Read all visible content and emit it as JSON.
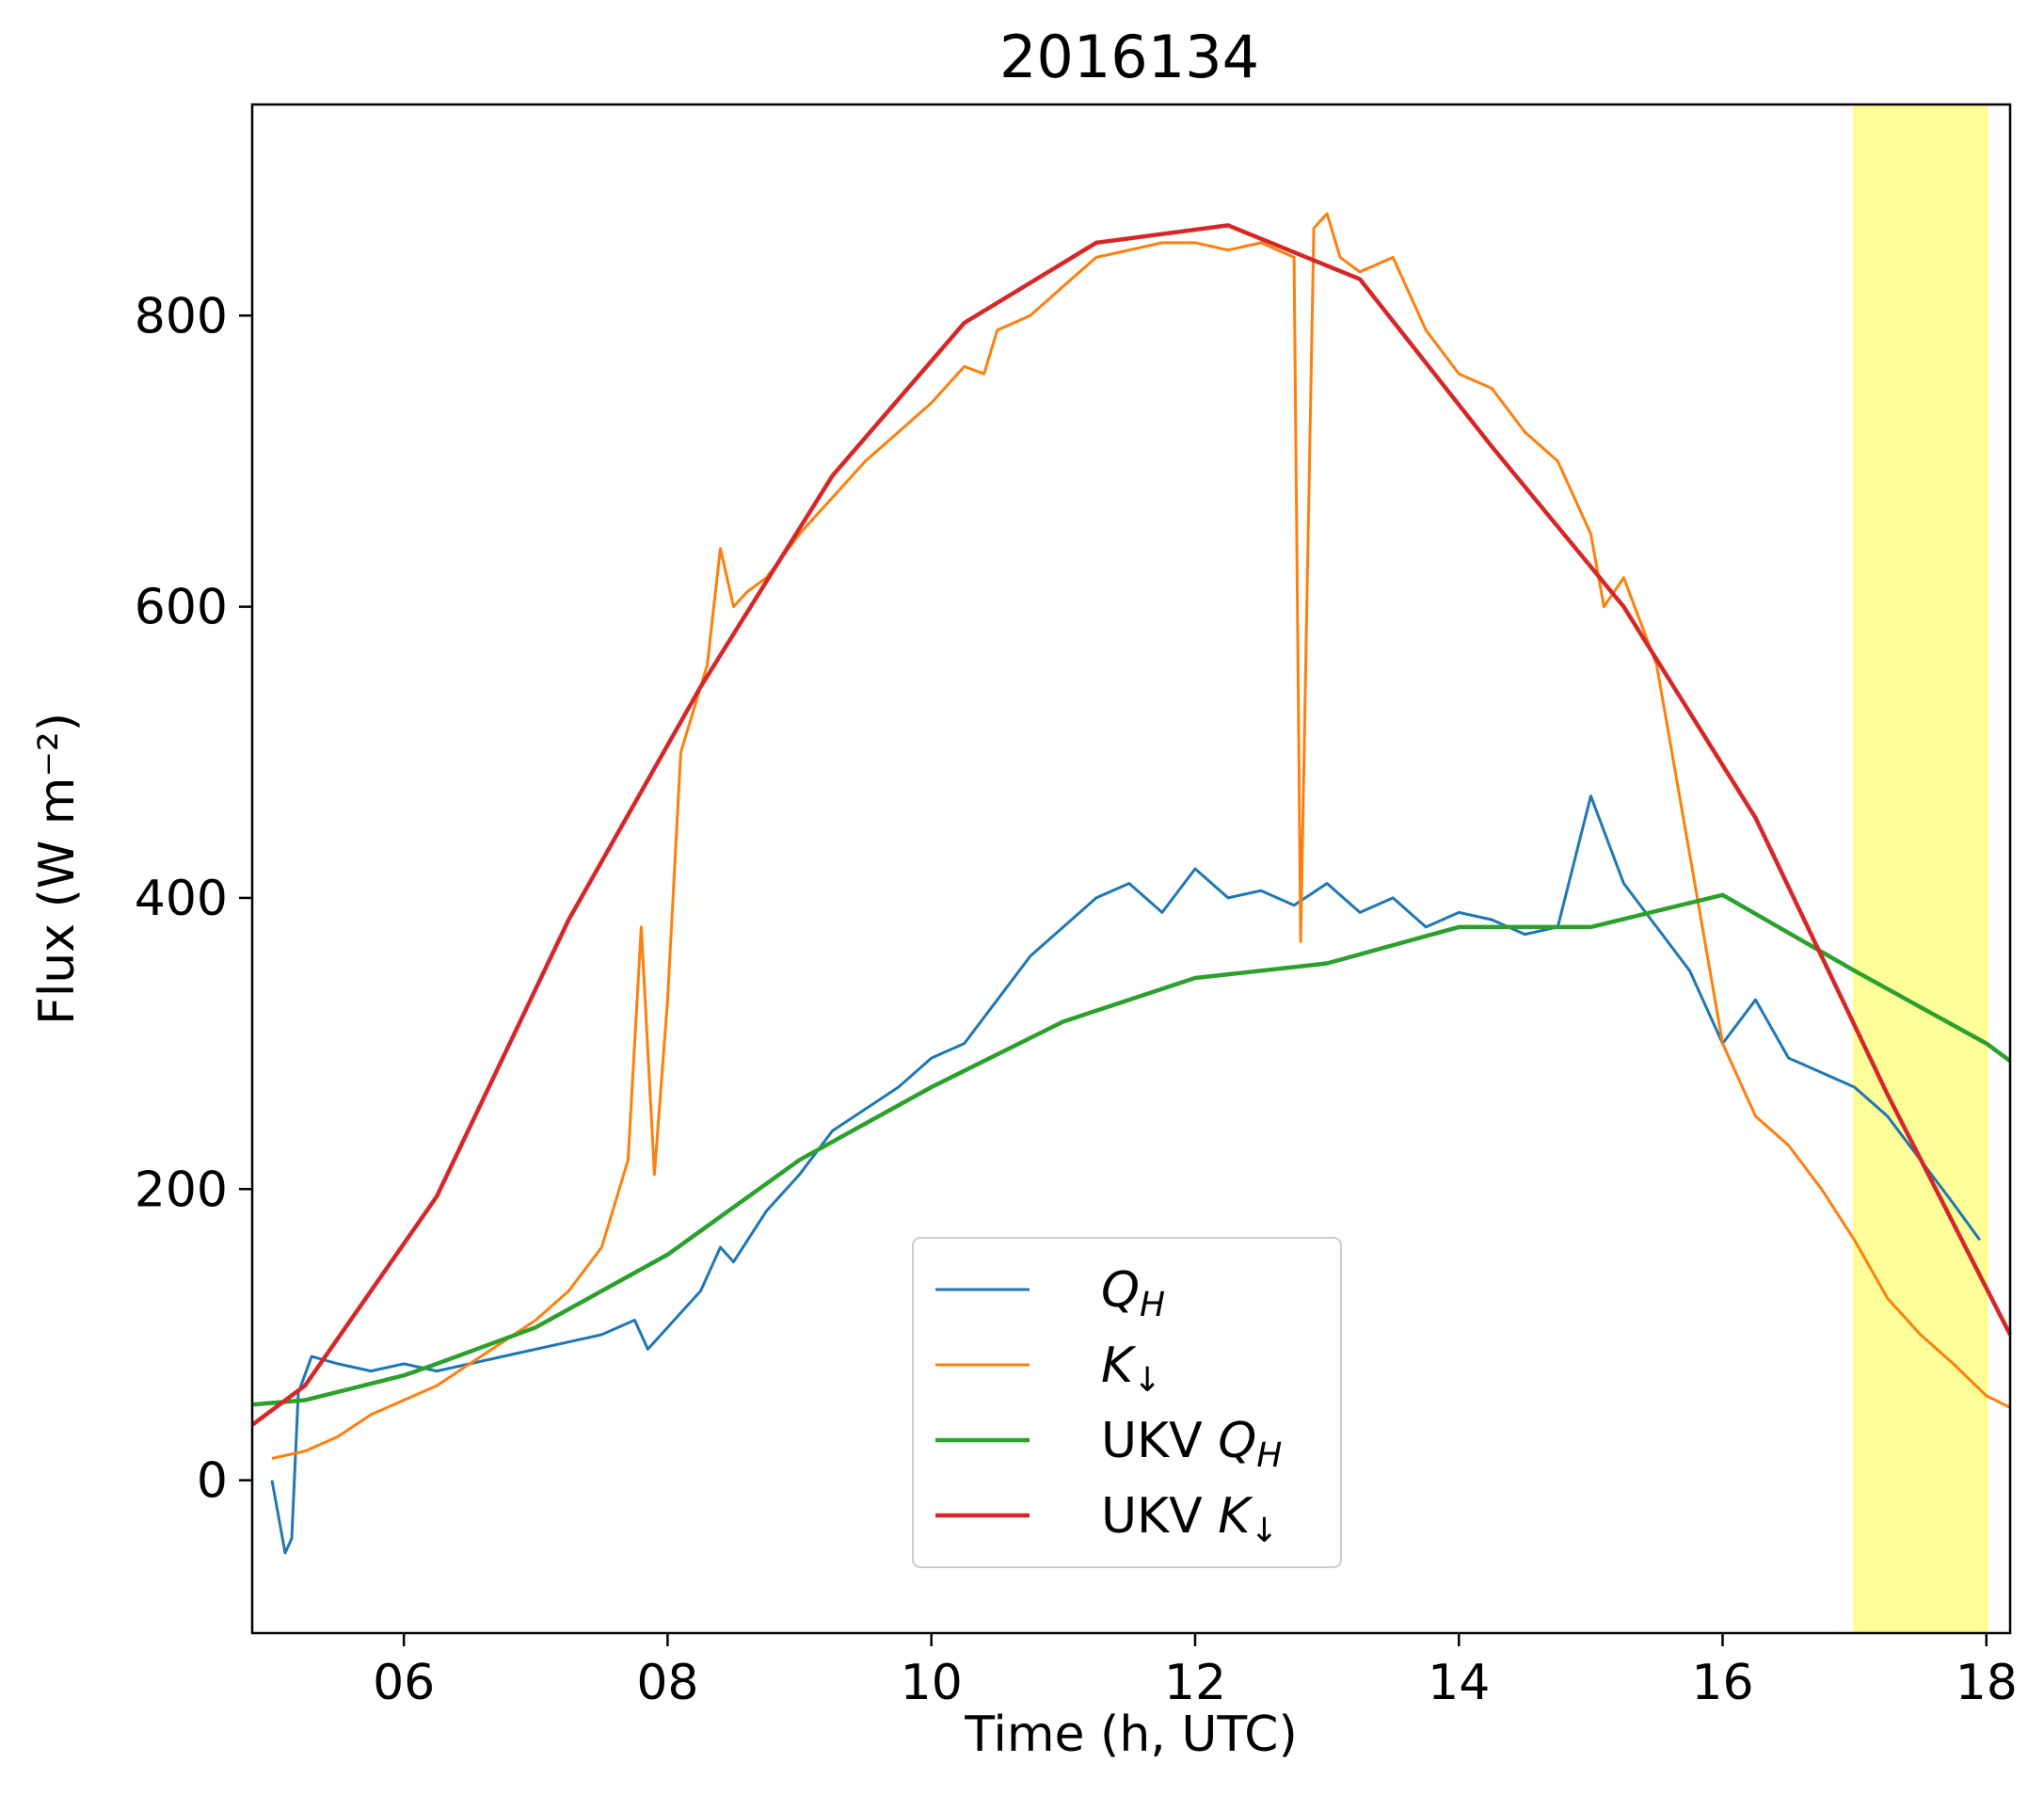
{
  "chart_data": {
    "type": "line",
    "title": "2016134",
    "xlabel": "Time (h, UTC)",
    "ylabel": "Flux (W m⁻²)",
    "xlim": [
      4.85,
      18.18
    ],
    "ylim": [
      -105,
      945
    ],
    "xticks": [
      6,
      8,
      10,
      12,
      14,
      16,
      18
    ],
    "xtick_labels": [
      "06",
      "08",
      "10",
      "12",
      "14",
      "16",
      "18"
    ],
    "yticks": [
      0,
      200,
      400,
      600,
      800
    ],
    "ytick_labels": [
      "0",
      "200",
      "400",
      "600",
      "800"
    ],
    "grid": false,
    "legend_position": "bottom-center",
    "shaded_region": {
      "x_start": 17.0,
      "x_end": 18.0,
      "color": "#ffff99"
    },
    "series": [
      {
        "name": "Q_H",
        "legend_label": "Q",
        "legend_sub": "H",
        "legend_prefix": "",
        "color": "#1f77b4",
        "x": [
          5.0,
          5.1,
          5.15,
          5.2,
          5.3,
          5.5,
          5.75,
          6.0,
          6.25,
          6.5,
          6.75,
          7.0,
          7.25,
          7.5,
          7.75,
          7.85,
          8.0,
          8.25,
          8.4,
          8.5,
          8.75,
          9.0,
          9.25,
          9.5,
          9.75,
          10.0,
          10.25,
          10.5,
          10.75,
          11.0,
          11.25,
          11.5,
          11.75,
          12.0,
          12.25,
          12.5,
          12.75,
          13.0,
          13.25,
          13.5,
          13.75,
          14.0,
          14.25,
          14.5,
          14.75,
          15.0,
          15.25,
          15.5,
          15.75,
          16.0,
          16.25,
          16.5,
          16.75,
          17.0,
          17.25,
          17.5,
          17.75,
          17.95
        ],
        "y": [
          0,
          -50,
          -40,
          60,
          85,
          80,
          75,
          80,
          75,
          80,
          85,
          90,
          95,
          100,
          110,
          90,
          105,
          130,
          160,
          150,
          185,
          210,
          240,
          255,
          270,
          290,
          300,
          330,
          360,
          380,
          400,
          410,
          390,
          420,
          400,
          405,
          395,
          410,
          390,
          400,
          380,
          390,
          385,
          375,
          380,
          470,
          410,
          380,
          350,
          300,
          330,
          290,
          280,
          270,
          250,
          220,
          190,
          165
        ]
      },
      {
        "name": "K_down",
        "legend_label": "K",
        "legend_sub": "↓",
        "legend_prefix": "",
        "color": "#ff7f0e",
        "x": [
          5.0,
          5.25,
          5.5,
          5.75,
          6.0,
          6.25,
          6.5,
          6.75,
          7.0,
          7.25,
          7.5,
          7.7,
          7.8,
          7.9,
          8.0,
          8.1,
          8.2,
          8.3,
          8.4,
          8.5,
          8.6,
          8.75,
          9.0,
          9.25,
          9.5,
          9.75,
          10.0,
          10.25,
          10.4,
          10.5,
          10.75,
          11.0,
          11.25,
          11.5,
          11.75,
          12.0,
          12.25,
          12.5,
          12.75,
          12.8,
          12.9,
          13.0,
          13.1,
          13.25,
          13.5,
          13.75,
          14.0,
          14.25,
          14.5,
          14.75,
          15.0,
          15.1,
          15.25,
          15.5,
          15.75,
          16.0,
          16.25,
          16.5,
          16.75,
          17.0,
          17.25,
          17.5,
          17.75,
          18.0,
          18.18
        ],
        "y": [
          15,
          20,
          30,
          45,
          55,
          65,
          80,
          95,
          110,
          130,
          160,
          220,
          380,
          210,
          330,
          500,
          530,
          560,
          640,
          600,
          610,
          620,
          650,
          675,
          700,
          720,
          740,
          765,
          760,
          790,
          800,
          820,
          840,
          845,
          850,
          850,
          845,
          850,
          840,
          370,
          860,
          870,
          840,
          830,
          840,
          790,
          760,
          750,
          720,
          700,
          650,
          600,
          620,
          560,
          430,
          300,
          250,
          230,
          200,
          165,
          125,
          100,
          80,
          58,
          50
        ]
      },
      {
        "name": "UKV Q_H",
        "legend_label": "Q",
        "legend_sub": "H",
        "legend_prefix": "UKV ",
        "color": "#2ca02c",
        "x": [
          4.85,
          5.25,
          6.0,
          6.25,
          7.0,
          8.0,
          9.0,
          10.0,
          11.0,
          12.0,
          13.0,
          14.0,
          15.0,
          16.0,
          17.0,
          18.0,
          18.18
        ],
        "y": [
          52,
          55,
          72,
          80,
          105,
          155,
          220,
          270,
          315,
          345,
          355,
          380,
          380,
          402,
          350,
          300,
          288
        ]
      },
      {
        "name": "UKV K_down",
        "legend_label": "K",
        "legend_sub": "↓",
        "legend_prefix": "UKV ",
        "color": "#d62728",
        "x": [
          4.85,
          5.25,
          6.25,
          7.25,
          8.25,
          9.25,
          10.25,
          11.25,
          12.25,
          13.25,
          14.25,
          15.25,
          16.25,
          17.25,
          18.18
        ],
        "y": [
          38,
          65,
          195,
          385,
          545,
          690,
          795,
          850,
          862,
          825,
          710,
          600,
          455,
          265,
          100
        ]
      }
    ]
  }
}
